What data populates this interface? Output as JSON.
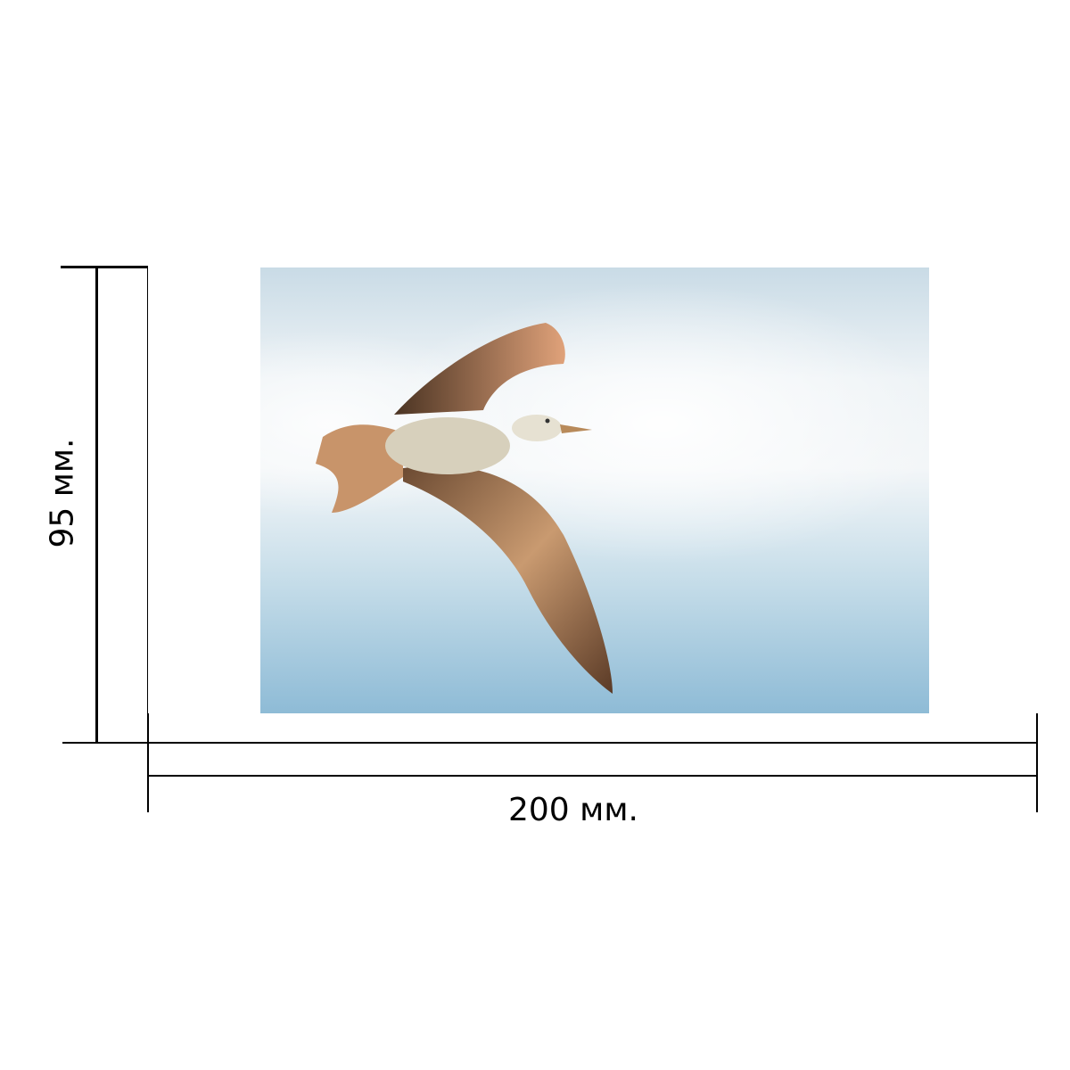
{
  "dimensions": {
    "width_label": "200 мм.",
    "height_label": "95 мм."
  },
  "photo": {
    "subject": "seagull-in-flight",
    "colors": {
      "sky_top": "#c9dbe6",
      "sky_bottom": "#8ebbd6",
      "feathers": "#b07a50"
    }
  }
}
